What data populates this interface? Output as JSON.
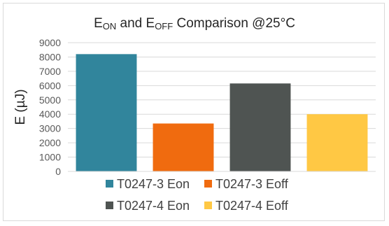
{
  "chart_data": {
    "type": "bar",
    "title_parts": [
      {
        "text": "E",
        "sub": false
      },
      {
        "text": "ON",
        "sub": true
      },
      {
        "text": " and E",
        "sub": false
      },
      {
        "text": "OFF",
        "sub": true
      },
      {
        "text": " Comparison @25°C",
        "sub": false
      }
    ],
    "ylabel": "E (µJ)",
    "xlabel": "",
    "ylim": [
      0,
      9000
    ],
    "yticks": [
      0,
      1000,
      2000,
      3000,
      4000,
      5000,
      6000,
      7000,
      8000,
      9000
    ],
    "grid": true,
    "legend_position": "bottom",
    "series": [
      {
        "name": "T0247-3 Eon",
        "value": 8200,
        "color": "#31859c"
      },
      {
        "name": "T0247-3 Eoff",
        "value": 3350,
        "color": "#f06b0f"
      },
      {
        "name": "T0247-4 Eon",
        "value": 6150,
        "color": "#4f5452"
      },
      {
        "name": "T0247-4 Eoff",
        "value": 4000,
        "color": "#ffc844"
      }
    ]
  }
}
